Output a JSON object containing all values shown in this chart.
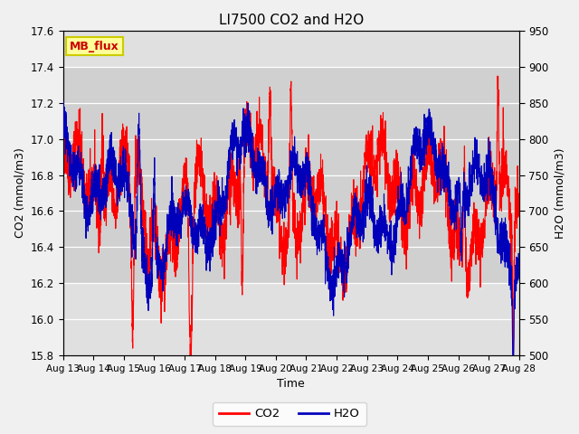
{
  "title": "LI7500 CO2 and H2O",
  "xlabel": "Time",
  "ylabel_left": "CO2 (mmol/m3)",
  "ylabel_right": "H2O (mmol/m3)",
  "ylim_left": [
    15.8,
    17.6
  ],
  "ylim_right": [
    500,
    950
  ],
  "yticks_left": [
    15.8,
    16.0,
    16.2,
    16.4,
    16.6,
    16.8,
    17.0,
    17.2,
    17.4,
    17.6
  ],
  "yticks_right": [
    500,
    550,
    600,
    650,
    700,
    750,
    800,
    850,
    900,
    950
  ],
  "xticklabels": [
    "Aug 13",
    "Aug 14",
    "Aug 15",
    "Aug 16",
    "Aug 17",
    "Aug 18",
    "Aug 19",
    "Aug 20",
    "Aug 21",
    "Aug 22",
    "Aug 23",
    "Aug 24",
    "Aug 25",
    "Aug 26",
    "Aug 27",
    "Aug 28"
  ],
  "co2_color": "#ff0000",
  "h2o_color": "#0000bb",
  "legend_label_co2": "CO2",
  "legend_label_h2o": "H2O",
  "annotation_text": "MB_flux",
  "annotation_color": "#cc0000",
  "annotation_bg": "#ffff99",
  "annotation_border": "#cccc00",
  "fig_bg": "#f0f0f0",
  "plot_bg": "#e0e0e0",
  "band_bg": "#d0d0d0",
  "n_points": 3000,
  "line_width": 0.8,
  "seed": 42
}
